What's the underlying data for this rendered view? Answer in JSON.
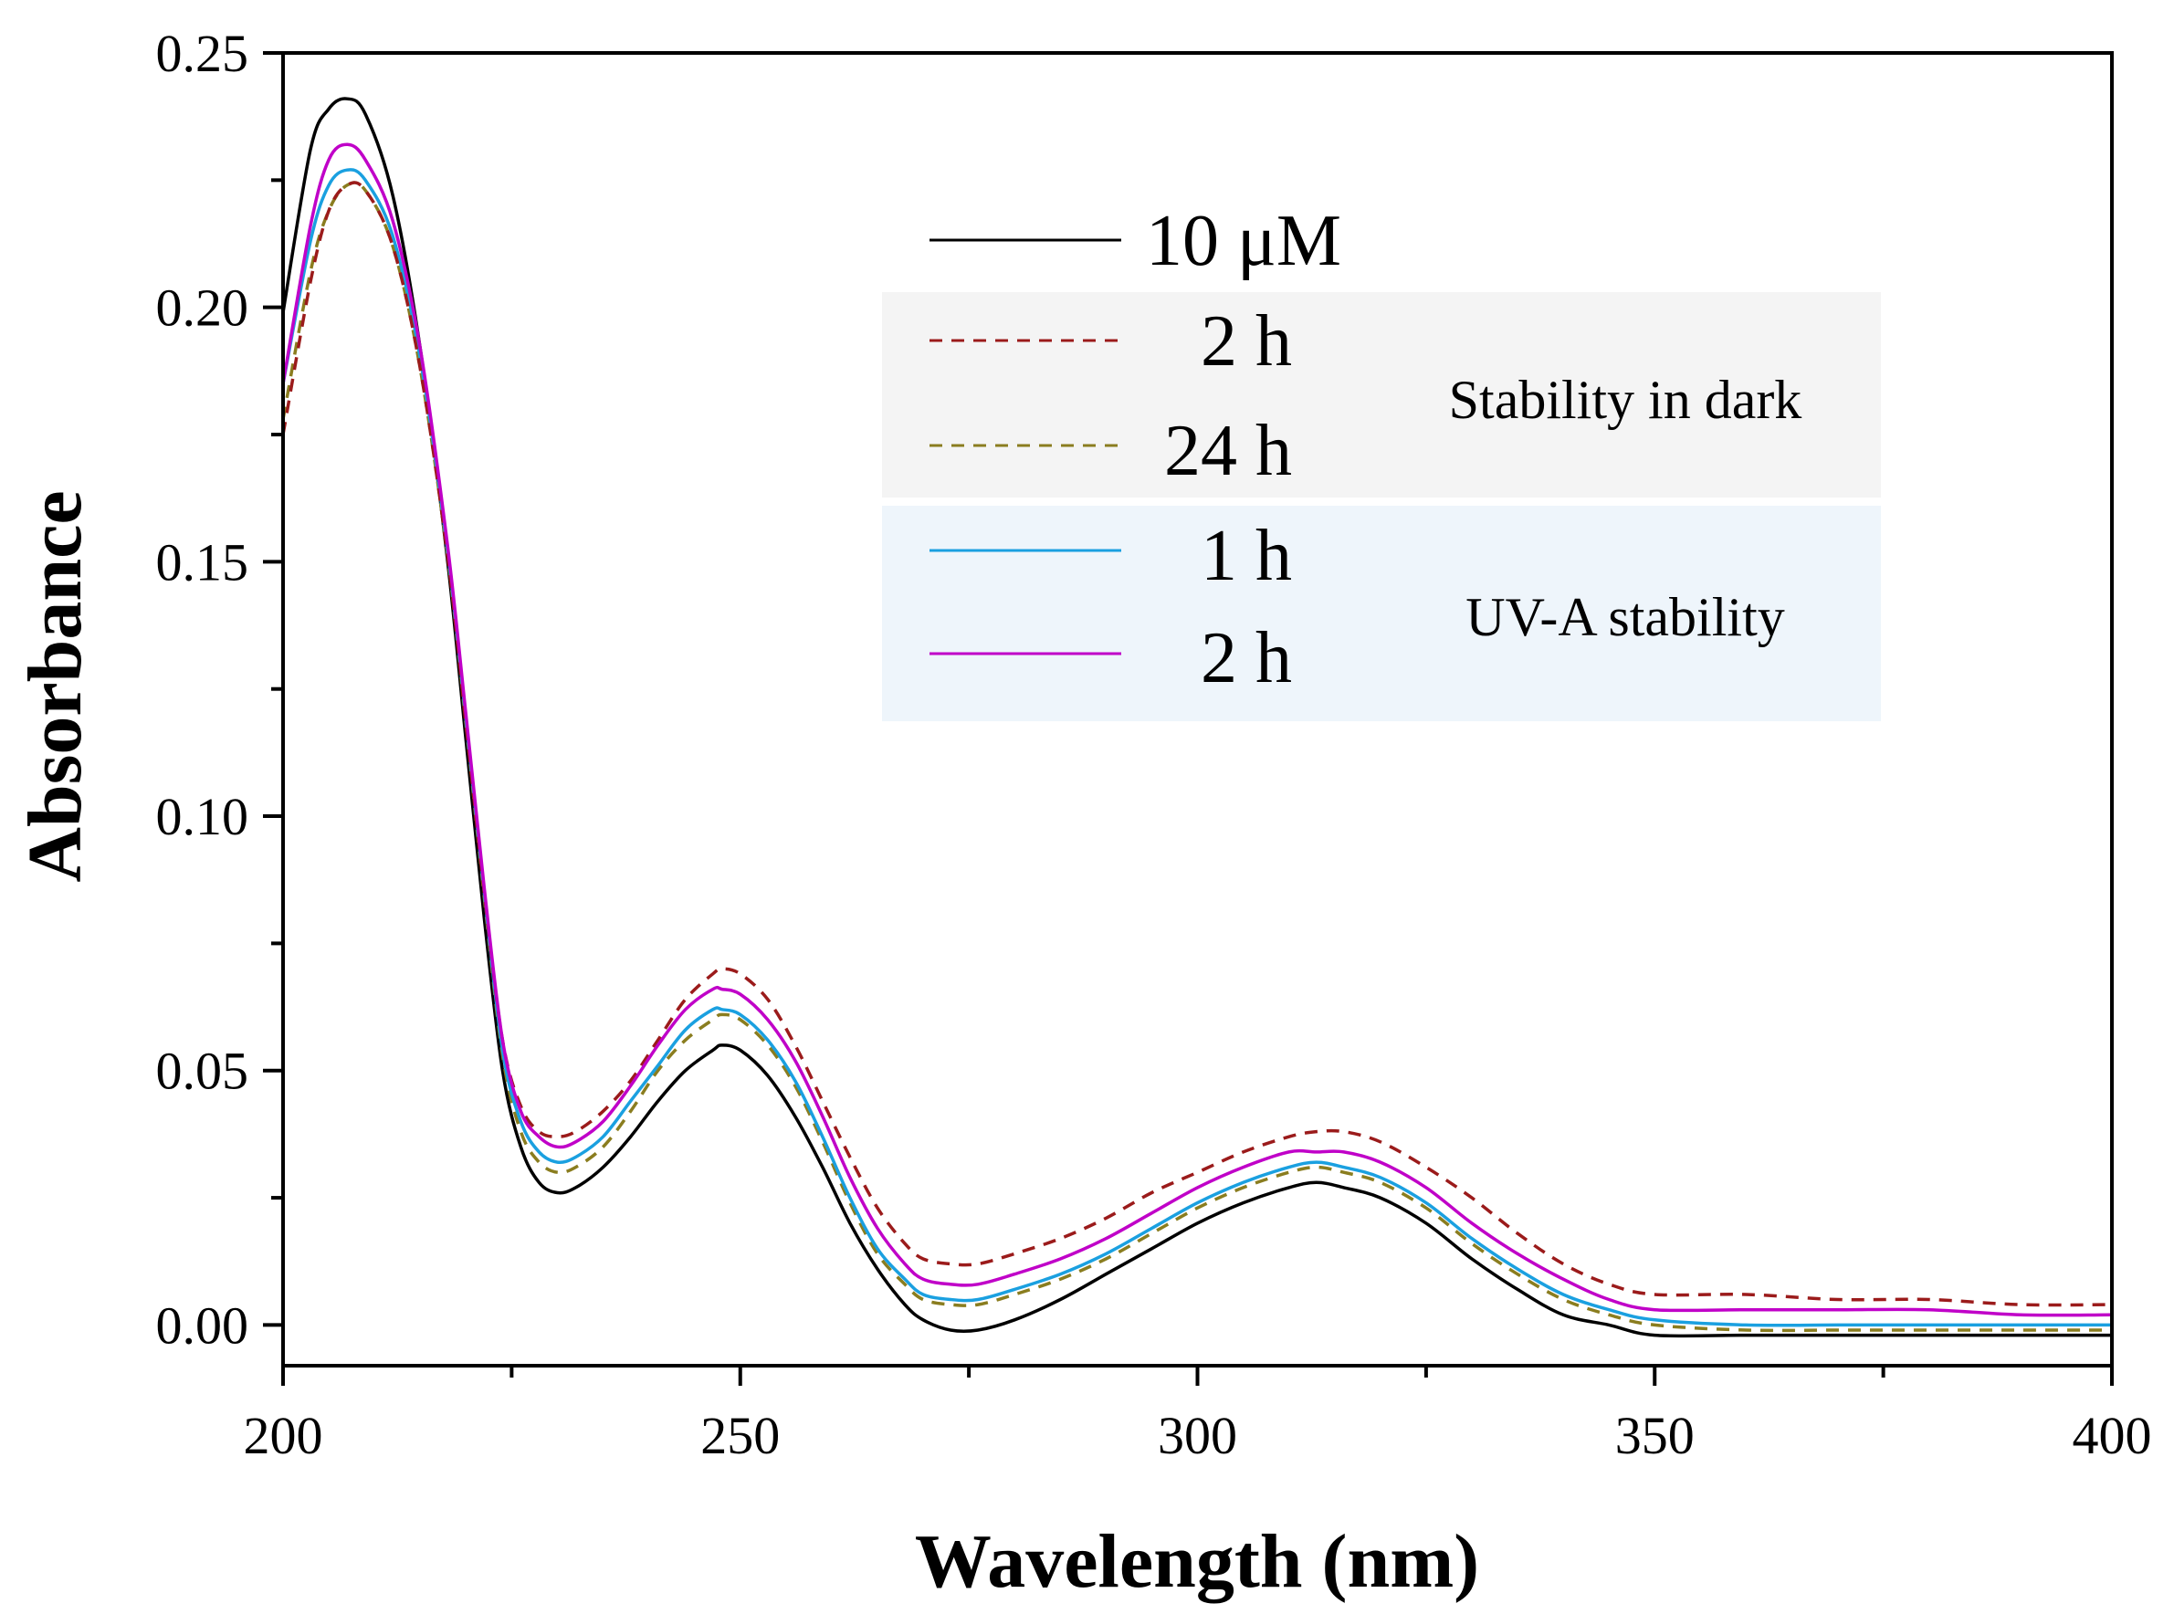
{
  "chart_data": {
    "type": "line",
    "title": "",
    "xlabel": "Wavelength (nm)",
    "ylabel": "Absorbance",
    "xlim": [
      200,
      400
    ],
    "ylim": [
      -0.008,
      0.25
    ],
    "x_ticks": [
      200,
      250,
      300,
      350,
      400
    ],
    "x_tick_labels": [
      "200",
      "250",
      "300",
      "350",
      "400"
    ],
    "y_ticks": [
      0.0,
      0.05,
      0.1,
      0.15,
      0.2,
      0.25
    ],
    "y_tick_labels": [
      "0.00",
      "0.05",
      "0.10",
      "0.15",
      "0.20",
      "0.25"
    ],
    "grid": false,
    "legend_position": "top-right",
    "x": [
      200,
      203,
      205,
      207,
      209,
      212,
      215,
      218,
      220,
      222,
      224,
      226,
      228,
      230,
      232,
      235,
      238,
      241,
      244,
      247,
      248,
      250,
      253,
      256,
      259,
      262,
      265,
      268,
      270,
      273,
      276,
      280,
      285,
      290,
      295,
      300,
      305,
      310,
      313,
      316,
      320,
      325,
      330,
      335,
      340,
      345,
      350,
      360,
      370,
      380,
      390,
      400
    ],
    "series": [
      {
        "name": "10 μM",
        "legend_label": "10 μM",
        "color": "#000000",
        "dash": "solid",
        "values": [
          0.199,
          0.231,
          0.239,
          0.241,
          0.238,
          0.222,
          0.192,
          0.15,
          0.115,
          0.08,
          0.05,
          0.035,
          0.028,
          0.026,
          0.027,
          0.031,
          0.037,
          0.044,
          0.05,
          0.054,
          0.055,
          0.054,
          0.049,
          0.041,
          0.031,
          0.02,
          0.011,
          0.004,
          0.001,
          -0.001,
          -0.001,
          0.001,
          0.005,
          0.01,
          0.015,
          0.02,
          0.024,
          0.027,
          0.028,
          0.027,
          0.025,
          0.02,
          0.013,
          0.007,
          0.002,
          0.0,
          -0.002,
          -0.002,
          -0.002,
          -0.002,
          -0.002,
          -0.002
        ]
      },
      {
        "name": "2 h (dark)",
        "legend_label": "2 h",
        "color": "#9b1b1b",
        "dash": "dashed",
        "values": [
          0.175,
          0.205,
          0.219,
          0.224,
          0.223,
          0.212,
          0.188,
          0.151,
          0.118,
          0.085,
          0.056,
          0.043,
          0.038,
          0.037,
          0.038,
          0.042,
          0.048,
          0.056,
          0.064,
          0.069,
          0.07,
          0.069,
          0.064,
          0.055,
          0.044,
          0.033,
          0.023,
          0.016,
          0.013,
          0.012,
          0.012,
          0.014,
          0.017,
          0.021,
          0.026,
          0.03,
          0.034,
          0.037,
          0.038,
          0.038,
          0.036,
          0.031,
          0.025,
          0.018,
          0.012,
          0.008,
          0.006,
          0.006,
          0.005,
          0.005,
          0.004,
          0.004
        ]
      },
      {
        "name": "24 h (dark)",
        "legend_label": "24 h",
        "color": "#8a7d1f",
        "dash": "dashed",
        "values": [
          0.178,
          0.207,
          0.219,
          0.224,
          0.223,
          0.212,
          0.188,
          0.151,
          0.118,
          0.084,
          0.053,
          0.038,
          0.032,
          0.03,
          0.031,
          0.035,
          0.042,
          0.05,
          0.056,
          0.06,
          0.061,
          0.06,
          0.055,
          0.047,
          0.036,
          0.024,
          0.014,
          0.008,
          0.005,
          0.004,
          0.004,
          0.006,
          0.009,
          0.013,
          0.018,
          0.023,
          0.027,
          0.03,
          0.031,
          0.03,
          0.028,
          0.023,
          0.016,
          0.01,
          0.005,
          0.002,
          0.0,
          -0.001,
          -0.001,
          -0.001,
          -0.001,
          -0.001
        ]
      },
      {
        "name": "1 h (UV-A)",
        "legend_label": "1 h",
        "color": "#1aa0e0",
        "dash": "solid",
        "values": [
          0.185,
          0.213,
          0.224,
          0.227,
          0.225,
          0.214,
          0.19,
          0.152,
          0.119,
          0.085,
          0.054,
          0.04,
          0.034,
          0.032,
          0.033,
          0.037,
          0.044,
          0.051,
          0.058,
          0.062,
          0.062,
          0.061,
          0.056,
          0.048,
          0.037,
          0.025,
          0.015,
          0.009,
          0.006,
          0.005,
          0.005,
          0.007,
          0.01,
          0.014,
          0.019,
          0.024,
          0.028,
          0.031,
          0.032,
          0.031,
          0.029,
          0.024,
          0.017,
          0.011,
          0.006,
          0.003,
          0.001,
          0.0,
          0.0,
          0.0,
          0.0,
          0.0
        ]
      },
      {
        "name": "2 h (UV-A)",
        "legend_label": "2 h",
        "color": "#c000c8",
        "dash": "solid",
        "values": [
          0.185,
          0.216,
          0.229,
          0.232,
          0.229,
          0.217,
          0.192,
          0.153,
          0.12,
          0.086,
          0.056,
          0.042,
          0.037,
          0.035,
          0.036,
          0.04,
          0.047,
          0.055,
          0.062,
          0.066,
          0.066,
          0.065,
          0.06,
          0.052,
          0.041,
          0.029,
          0.019,
          0.012,
          0.009,
          0.008,
          0.008,
          0.01,
          0.013,
          0.017,
          0.022,
          0.027,
          0.031,
          0.034,
          0.034,
          0.034,
          0.032,
          0.027,
          0.02,
          0.014,
          0.009,
          0.005,
          0.003,
          0.003,
          0.003,
          0.003,
          0.002,
          0.002
        ]
      }
    ],
    "legend_groups": [
      {
        "label": "Stability in dark",
        "color": "#f4f4f4"
      },
      {
        "label": "UV-A stability",
        "color": "#eef5fb"
      }
    ]
  }
}
